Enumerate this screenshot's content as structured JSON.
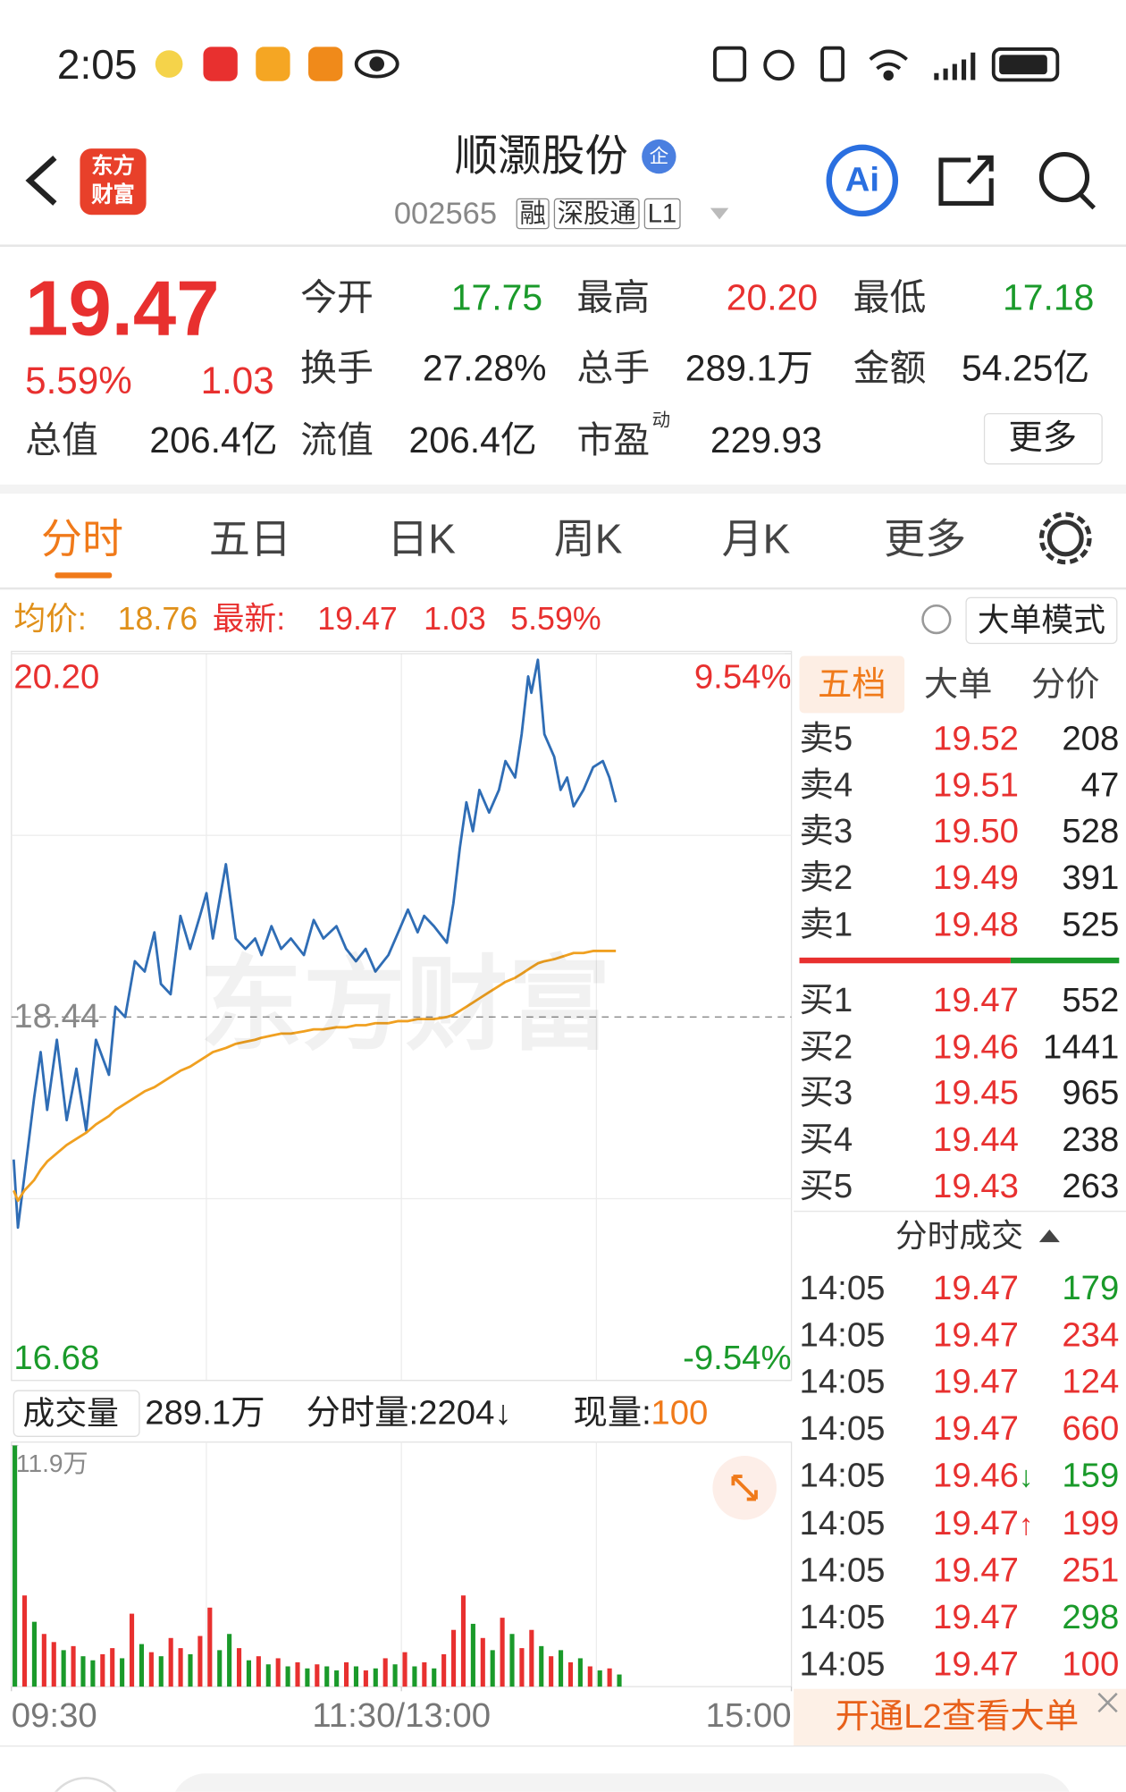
{
  "status_bar": {
    "time": "2:05"
  },
  "header": {
    "logo": [
      "东方",
      "财富"
    ],
    "title": "顺灏股份",
    "badge": "企",
    "code": "002565",
    "tags": [
      "融",
      "深股通",
      "L1"
    ],
    "ai": "Ai"
  },
  "quote": {
    "price": "19.47",
    "change_pct": "5.59%",
    "change": "1.03",
    "fields": [
      {
        "label": "今开",
        "value": "17.75"
      },
      {
        "label": "最高",
        "value": "20.20"
      },
      {
        "label": "最低",
        "value": "17.18"
      },
      {
        "label": "换手",
        "value": "27.28%"
      },
      {
        "label": "总手",
        "value": "289.1万"
      },
      {
        "label": "金额",
        "value": "54.25亿"
      },
      {
        "label": "总值",
        "value": "206.4亿"
      },
      {
        "label": "流值",
        "value": "206.4亿"
      },
      {
        "label": "市盈",
        "sup": "动",
        "value": "229.93"
      }
    ],
    "more": "更多"
  },
  "tabs": [
    "分时",
    "五日",
    "日K",
    "周K",
    "月K",
    "更多"
  ],
  "summary": {
    "avg_label": "均价:",
    "avg": "18.76",
    "latest_label": "最新:",
    "latest": "19.47",
    "change": "1.03",
    "change_pct": "5.59%",
    "mode": "大单模式"
  },
  "watermark": "东方财富",
  "volume_header": {
    "label": "成交量",
    "total": "289.1万",
    "minute_volume": "分时量:2204↓",
    "current_label": "现量:",
    "current": "100"
  },
  "order_book": {
    "tabs": [
      "五档",
      "大单",
      "分价"
    ],
    "asks": [
      {
        "label": "卖5",
        "price": "19.52",
        "volume": "208"
      },
      {
        "label": "卖4",
        "price": "19.51",
        "volume": "47"
      },
      {
        "label": "卖3",
        "price": "19.50",
        "volume": "528"
      },
      {
        "label": "卖2",
        "price": "19.49",
        "volume": "391"
      },
      {
        "label": "卖1",
        "price": "19.48",
        "volume": "525"
      }
    ],
    "bids": [
      {
        "label": "买1",
        "price": "19.47",
        "volume": "552"
      },
      {
        "label": "买2",
        "price": "19.46",
        "volume": "1441"
      },
      {
        "label": "买3",
        "price": "19.45",
        "volume": "965"
      },
      {
        "label": "买4",
        "price": "19.44",
        "volume": "238"
      },
      {
        "label": "买5",
        "price": "19.43",
        "volume": "263"
      }
    ],
    "trades_title": "分时成交",
    "trades": [
      {
        "time": "14:05",
        "price": "19.47",
        "volume": "179",
        "color": "#1a9a2a"
      },
      {
        "time": "14:05",
        "price": "19.47",
        "volume": "234",
        "color": "#e8302f"
      },
      {
        "time": "14:05",
        "price": "19.47",
        "volume": "124",
        "color": "#e8302f"
      },
      {
        "time": "14:05",
        "price": "19.47",
        "volume": "660",
        "color": "#e8302f"
      },
      {
        "time": "14:05",
        "price": "19.46",
        "arrow": "↓",
        "arrow_color": "#1a9a2a",
        "volume": "159",
        "color": "#1a9a2a"
      },
      {
        "time": "14:05",
        "price": "19.47",
        "arrow": "↑",
        "arrow_color": "#e8302f",
        "volume": "199",
        "color": "#e8302f"
      },
      {
        "time": "14:05",
        "price": "19.47",
        "volume": "251",
        "color": "#e8302f"
      },
      {
        "time": "14:05",
        "price": "19.47",
        "volume": "298",
        "color": "#1a9a2a"
      },
      {
        "time": "14:05",
        "price": "19.47",
        "volume": "100",
        "color": "#e8302f"
      }
    ]
  },
  "banner": "开通L2查看大单",
  "chart_data": [
    {
      "type": "line",
      "grid_divisions": 4,
      "xlim": [
        0,
        240
      ],
      "ylim": [
        16.68,
        20.2
      ],
      "yticks": [
        {
          "value": 20.2,
          "label": "20.20"
        },
        18.44,
        16.68
      ],
      "y2lim": [
        -9.54,
        9.54
      ],
      "y2ticks": [
        {
          "value": 9.54,
          "label": "9.54%"
        },
        {
          "value": -9.54,
          "label": "-9.54%"
        }
      ],
      "x": [
        0.7,
        2,
        4,
        7,
        9,
        11,
        14,
        17,
        20,
        23,
        26,
        30,
        32,
        35,
        38,
        41,
        44,
        46,
        49,
        52,
        55,
        58,
        60,
        62,
        66,
        69,
        72,
        75,
        77,
        80,
        83,
        86,
        90,
        93,
        96,
        100,
        103,
        106,
        109,
        112,
        116,
        119,
        122,
        125,
        127,
        130,
        134,
        136,
        138,
        140,
        142,
        144,
        147,
        150,
        152,
        155,
        157,
        159,
        160,
        162,
        164,
        167,
        169,
        171,
        173,
        176,
        179,
        182,
        184,
        186
      ],
      "series": [
        {
          "color": "#2f6db5",
          "values": [
            17.75,
            17.42,
            17.67,
            18.05,
            18.27,
            17.99,
            18.33,
            17.94,
            18.19,
            17.89,
            18.33,
            18.16,
            18.49,
            18.44,
            18.71,
            18.66,
            18.85,
            18.6,
            18.55,
            18.93,
            18.77,
            18.93,
            19.04,
            18.82,
            19.18,
            18.82,
            18.77,
            18.82,
            18.74,
            18.88,
            18.77,
            18.82,
            18.74,
            18.91,
            18.82,
            18.88,
            18.77,
            18.71,
            18.77,
            18.66,
            18.74,
            18.85,
            18.96,
            18.85,
            18.93,
            18.88,
            18.8,
            18.99,
            19.26,
            19.48,
            19.34,
            19.54,
            19.43,
            19.54,
            19.68,
            19.6,
            19.81,
            20.09,
            20.01,
            20.17,
            19.81,
            19.7,
            19.54,
            19.6,
            19.46,
            19.54,
            19.65,
            19.68,
            19.6,
            19.48
          ]
        },
        {
          "color": "#f0a020",
          "values": [
            17.6,
            17.55,
            17.6,
            17.65,
            17.7,
            17.74,
            17.78,
            17.82,
            17.85,
            17.88,
            17.92,
            17.96,
            17.99,
            18.02,
            18.05,
            18.08,
            18.1,
            18.12,
            18.15,
            18.18,
            18.2,
            18.23,
            18.25,
            18.27,
            18.29,
            18.31,
            18.32,
            18.33,
            18.34,
            18.35,
            18.36,
            18.36,
            18.37,
            18.38,
            18.38,
            18.39,
            18.39,
            18.4,
            18.4,
            18.41,
            18.41,
            18.42,
            18.42,
            18.43,
            18.43,
            18.43,
            18.44,
            18.45,
            18.47,
            18.49,
            18.51,
            18.53,
            18.56,
            18.59,
            18.61,
            18.63,
            18.65,
            18.67,
            18.68,
            18.7,
            18.71,
            18.72,
            18.73,
            18.74,
            18.75,
            18.75,
            18.76,
            18.76,
            18.76,
            18.76
          ]
        }
      ]
    },
    {
      "type": "bar",
      "grid_divisions": 4,
      "xlim": [
        0,
        240
      ],
      "xticks": [
        {
          "value": 0,
          "label": "09:30"
        },
        {
          "value": 120,
          "label": "11:30/13:00"
        },
        {
          "value": 240,
          "label": "15:00"
        }
      ],
      "ylim": [
        0,
        11.9
      ],
      "yticks": [
        {
          "value": 11.9,
          "label": "11.9万"
        }
      ],
      "x": [
        0,
        3,
        6,
        9,
        12,
        15,
        18,
        21,
        24,
        27,
        30,
        33,
        36,
        39,
        42,
        45,
        48,
        51,
        54,
        57,
        60,
        63,
        66,
        69,
        72,
        75,
        78,
        81,
        84,
        87,
        90,
        93,
        96,
        99,
        102,
        105,
        108,
        111,
        114,
        117,
        120,
        123,
        126,
        129,
        132,
        135,
        138,
        141,
        144,
        147,
        150,
        153,
        156,
        159,
        162,
        165,
        168,
        171,
        174,
        177,
        180,
        183,
        186
      ],
      "values": [
        11.9,
        4.5,
        3.2,
        2.6,
        2.2,
        1.8,
        2.0,
        1.5,
        1.3,
        1.6,
        1.9,
        1.4,
        3.6,
        2.1,
        1.7,
        1.5,
        2.4,
        1.9,
        1.6,
        2.5,
        3.9,
        1.8,
        2.6,
        1.9,
        1.3,
        1.5,
        1.1,
        1.4,
        1.0,
        1.2,
        0.9,
        1.1,
        1.0,
        0.8,
        1.2,
        1.0,
        0.8,
        0.9,
        1.4,
        1.1,
        1.7,
        1.0,
        1.2,
        0.9,
        1.6,
        2.8,
        4.5,
        3.1,
        2.4,
        1.8,
        3.4,
        2.6,
        1.9,
        2.8,
        2.0,
        1.5,
        1.8,
        1.2,
        1.4,
        1.0,
        0.8,
        0.9,
        0.6
      ],
      "colors": [
        "#1a9a2a",
        "#e8302f",
        "#1a9a2a",
        "#e8302f",
        "#e8302f",
        "#1a9a2a",
        "#e8302f",
        "#1a9a2a",
        "#1a9a2a",
        "#e8302f",
        "#e8302f",
        "#1a9a2a",
        "#e8302f",
        "#1a9a2a",
        "#e8302f",
        "#1a9a2a",
        "#e8302f",
        "#e8302f",
        "#1a9a2a",
        "#e8302f",
        "#e8302f",
        "#1a9a2a",
        "#1a9a2a",
        "#e8302f",
        "#1a9a2a",
        "#e8302f",
        "#1a9a2a",
        "#e8302f",
        "#1a9a2a",
        "#e8302f",
        "#1a9a2a",
        "#e8302f",
        "#1a9a2a",
        "#1a9a2a",
        "#e8302f",
        "#1a9a2a",
        "#e8302f",
        "#1a9a2a",
        "#e8302f",
        "#1a9a2a",
        "#e8302f",
        "#1a9a2a",
        "#e8302f",
        "#1a9a2a",
        "#e8302f",
        "#e8302f",
        "#e8302f",
        "#1a9a2a",
        "#e8302f",
        "#1a9a2a",
        "#e8302f",
        "#1a9a2a",
        "#e8302f",
        "#e8302f",
        "#1a9a2a",
        "#e8302f",
        "#1a9a2a",
        "#e8302f",
        "#1a9a2a",
        "#e8302f",
        "#1a9a2a",
        "#e8302f",
        "#1a9a2a"
      ]
    }
  ]
}
